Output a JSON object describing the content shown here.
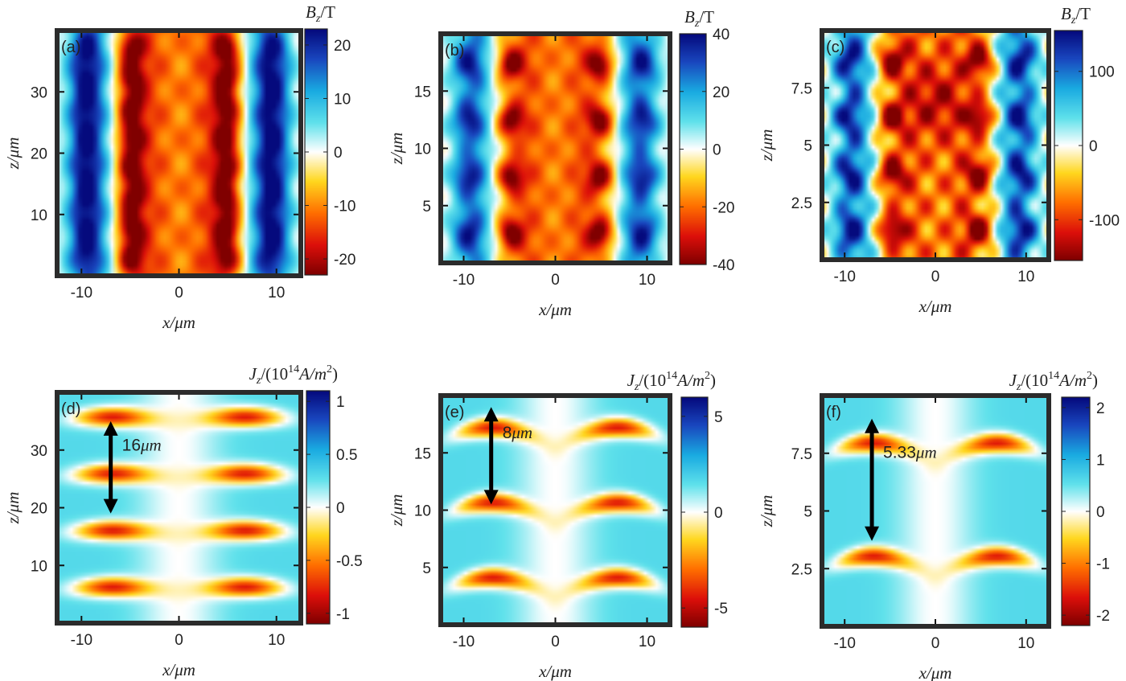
{
  "figure": {
    "panel_count": 6,
    "layout": "2 rows x 3 columns"
  },
  "chart_data": [
    {
      "type": "heatmap",
      "panel_label": "(a)",
      "quantity": "B_z",
      "colorbar_title": {
        "base": "B",
        "sub": "z",
        "unit": "/T"
      },
      "xlabel": "x/μm",
      "ylabel": "z/μm",
      "xlim": [
        -12.5,
        12.5
      ],
      "ylim": [
        0,
        40
      ],
      "xticks": [
        -10,
        0,
        10
      ],
      "yticks": [
        10,
        20,
        30
      ],
      "xtick_labels": [
        "-10",
        "0",
        "10"
      ],
      "ytick_labels": [
        "10",
        "20",
        "30"
      ],
      "clim": [
        -23,
        23
      ],
      "cticks": [
        -20,
        -10,
        0,
        10,
        20
      ],
      "ctick_labels": [
        "-20",
        "-10",
        "0",
        "10",
        "20"
      ],
      "colormap": "jet-like (dark red negative, blue positive)",
      "pattern": "bz",
      "period_um": 16,
      "annotation": null
    },
    {
      "type": "heatmap",
      "panel_label": "(b)",
      "quantity": "B_z",
      "colorbar_title": {
        "base": "B",
        "sub": "z",
        "unit": "/T"
      },
      "xlabel": "x/μm",
      "ylabel": "z/μm",
      "xlim": [
        -12.5,
        12.5
      ],
      "ylim": [
        0,
        20
      ],
      "xticks": [
        -10,
        0,
        10
      ],
      "yticks": [
        5,
        10,
        15
      ],
      "xtick_labels": [
        "-10",
        "0",
        "10"
      ],
      "ytick_labels": [
        "5",
        "10",
        "15"
      ],
      "clim": [
        -40,
        40
      ],
      "cticks": [
        -40,
        -20,
        0,
        20,
        40
      ],
      "ctick_labels": [
        "-40",
        "-20",
        "0",
        "20",
        "40"
      ],
      "colormap": "jet-like (dark red negative, blue positive)",
      "pattern": "bz",
      "period_um": 8,
      "annotation": null
    },
    {
      "type": "heatmap",
      "panel_label": "(c)",
      "quantity": "B_z",
      "colorbar_title": {
        "base": "B",
        "sub": "z",
        "unit": "/T"
      },
      "xlabel": "x/μm",
      "ylabel": "z/μm",
      "xlim": [
        -12.5,
        12.5
      ],
      "ylim": [
        0,
        10
      ],
      "xticks": [
        -10,
        0,
        10
      ],
      "yticks": [
        2.5,
        5,
        7.5
      ],
      "xtick_labels": [
        "-10",
        "0",
        "10"
      ],
      "ytick_labels": [
        "2.5",
        "5",
        "7.5"
      ],
      "clim": [
        -155,
        155
      ],
      "cticks": [
        -100,
        0,
        100
      ],
      "ctick_labels": [
        "-100",
        "0",
        "100"
      ],
      "colormap": "jet-like (dark red negative, blue positive)",
      "pattern": "bz",
      "period_um": 5.33,
      "annotation": null
    },
    {
      "type": "heatmap",
      "panel_label": "(d)",
      "quantity": "J_z",
      "colorbar_title": {
        "base": "J",
        "sub": "z",
        "unit": "/(10",
        "exp": "14",
        "tail": "A/m",
        "tail_exp": "2",
        "close": ")"
      },
      "xlabel": "x/μm",
      "ylabel": "z/μm",
      "xlim": [
        -12.5,
        12.5
      ],
      "ylim": [
        0,
        40
      ],
      "xticks": [
        -10,
        0,
        10
      ],
      "yticks": [
        10,
        20,
        30
      ],
      "xtick_labels": [
        "-10",
        "0",
        "10"
      ],
      "ytick_labels": [
        "10",
        "20",
        "30"
      ],
      "clim": [
        -1.1,
        1.1
      ],
      "cticks": [
        -1,
        -0.5,
        0,
        0.5,
        1
      ],
      "ctick_labels": [
        "-1",
        "-0.5",
        "0",
        "0.5",
        "1"
      ],
      "colormap": "jet-like (dark red negative, blue positive)",
      "pattern": "jz",
      "period_um": 16,
      "annotation": {
        "text": "16",
        "unit": "μm",
        "x": -7,
        "z_top": 35,
        "z_bottom": 19
      }
    },
    {
      "type": "heatmap",
      "panel_label": "(e)",
      "quantity": "J_z",
      "colorbar_title": {
        "base": "J",
        "sub": "z",
        "unit": "/(10",
        "exp": "14",
        "tail": "A/m",
        "tail_exp": "2",
        "close": ")"
      },
      "xlabel": "x/μm",
      "ylabel": "z/μm",
      "xlim": [
        -12.5,
        12.5
      ],
      "ylim": [
        0,
        20
      ],
      "xticks": [
        -10,
        0,
        10
      ],
      "yticks": [
        5,
        10,
        15
      ],
      "xtick_labels": [
        "-10",
        "0",
        "10"
      ],
      "ytick_labels": [
        "5",
        "10",
        "15"
      ],
      "clim": [
        -6,
        6
      ],
      "cticks": [
        -5,
        0,
        5
      ],
      "ctick_labels": [
        "-5",
        "0",
        "5"
      ],
      "colormap": "jet-like (dark red negative, blue positive)",
      "pattern": "jz",
      "period_um": 8,
      "annotation": {
        "text": "8",
        "unit": "μm",
        "x": -7,
        "z_top": 19,
        "z_bottom": 10.5
      }
    },
    {
      "type": "heatmap",
      "panel_label": "(f)",
      "quantity": "J_z",
      "colorbar_title": {
        "base": "J",
        "sub": "z",
        "unit": "/(10",
        "exp": "14",
        "tail": "A/m",
        "tail_exp": "2",
        "close": ")"
      },
      "xlabel": "x/μm",
      "ylabel": "z/μm",
      "xlim": [
        -12.5,
        12.5
      ],
      "ylim": [
        0,
        10
      ],
      "xticks": [
        -10,
        0,
        10
      ],
      "yticks": [
        2.5,
        5,
        7.5
      ],
      "xtick_labels": [
        "-10",
        "0",
        "10"
      ],
      "ytick_labels": [
        "2.5",
        "5",
        "7.5"
      ],
      "clim": [
        -2.2,
        2.2
      ],
      "cticks": [
        -2,
        -1,
        0,
        1,
        2
      ],
      "ctick_labels": [
        "-2",
        "-1",
        "0",
        "1",
        "2"
      ],
      "colormap": "jet-like (dark red negative, blue positive)",
      "pattern": "jz",
      "period_um": 5.33,
      "annotation": {
        "text": "5.33",
        "unit": "μm",
        "x": -7,
        "z_top": 9,
        "z_bottom": 3.7
      }
    }
  ]
}
